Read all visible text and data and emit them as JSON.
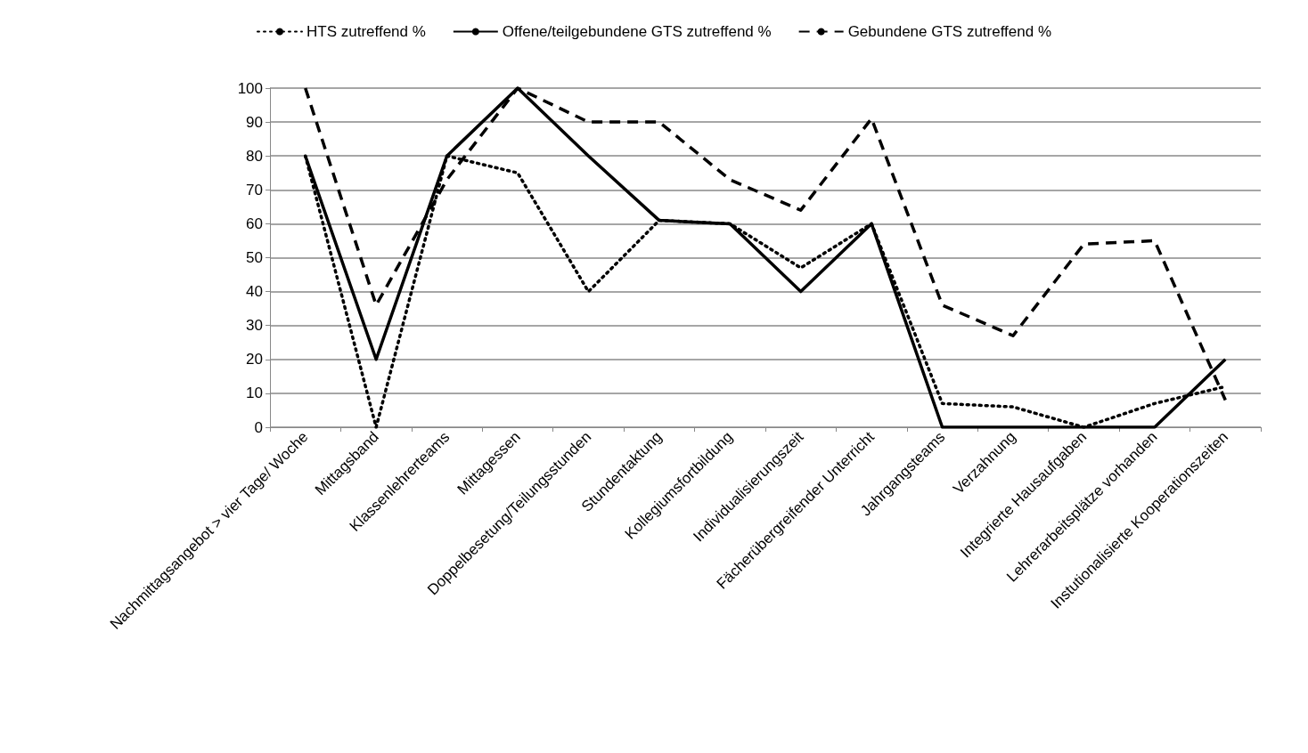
{
  "chart_data": {
    "type": "line",
    "categories": [
      "Nachmittagsangebot > vier Tage/ Woche",
      "Mittagsband",
      "Klassenlehrerteams",
      "Mittagessen",
      "Doppelbesetung/Teilungsstunden",
      "Stundentaktung",
      "Kollegiumsfortbildung",
      "Individualisierungszeit",
      "Fächerübergreifender Unterricht",
      "Jahrgangsteams",
      "Verzahnung",
      "Integrierte Hausaufgaben",
      "Lehrerarbeitsplätze vorhanden",
      "Instutionalisierte Kooperationszeiten"
    ],
    "series": [
      {
        "name": "HTS zutreffend %",
        "color": "#000000",
        "line_style": "dotted",
        "values": [
          80,
          0,
          80,
          75,
          40,
          61,
          60,
          47,
          60,
          7,
          6,
          0,
          7,
          12
        ]
      },
      {
        "name": "Offene/teilgebundene GTS zutreffend %",
        "color": "#000000",
        "line_style": "solid",
        "values": [
          80,
          20,
          80,
          100,
          80,
          61,
          60,
          40,
          60,
          0,
          0,
          0,
          0,
          20
        ]
      },
      {
        "name": "Gebundene GTS zutreffend %",
        "color": "#000000",
        "line_style": "dashed",
        "values": [
          100,
          36,
          73,
          100,
          90,
          90,
          73,
          64,
          91,
          36,
          27,
          54,
          55,
          8
        ]
      }
    ],
    "ylim": [
      0,
      100
    ],
    "yticks": [
      0,
      10,
      20,
      30,
      40,
      50,
      60,
      70,
      80,
      90,
      100
    ],
    "grid": "y",
    "legend": "top",
    "marker": "none"
  }
}
